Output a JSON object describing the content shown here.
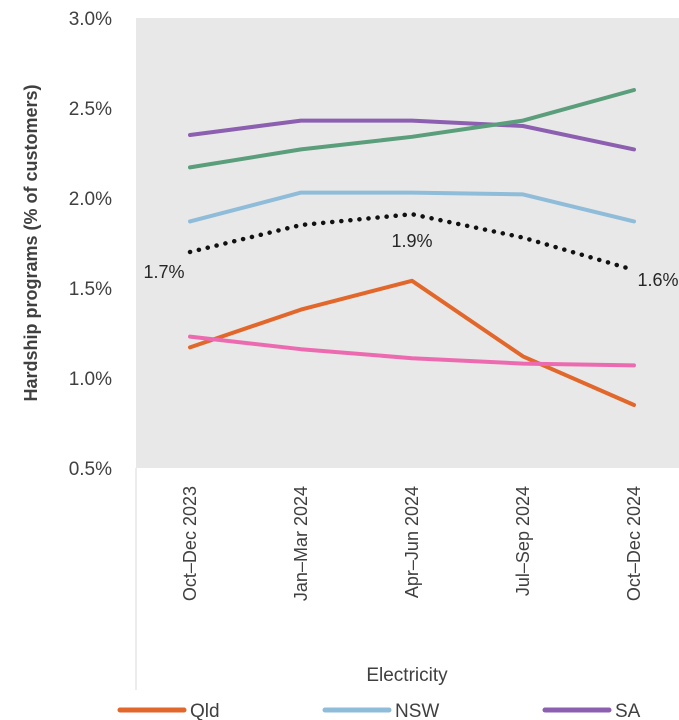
{
  "chart_data": {
    "type": "line",
    "ylabel": "Hardship programs (% of customers)",
    "xgroup_label": "Electricity",
    "ylim": [
      0.005,
      0.03
    ],
    "yticks": [
      0.005,
      0.01,
      0.015,
      0.02,
      0.025,
      0.03
    ],
    "ytick_labels": [
      "0.5%",
      "1.0%",
      "1.5%",
      "2.0%",
      "2.5%",
      "3.0%"
    ],
    "categories": [
      "Oct–Dec 2023",
      "Jan–Mar 2024",
      "Apr–Jun 2024",
      "Jul–Sep 2024",
      "Oct–Dec 2024"
    ],
    "grid": false,
    "plot_background": "#e8e8e8",
    "series": [
      {
        "name": "Qld",
        "color": "#e2672b",
        "style": "solid",
        "values": [
          0.0117,
          0.0138,
          0.0154,
          0.0112,
          0.0085
        ]
      },
      {
        "name": "NSW",
        "color": "#8fbcd9",
        "style": "solid",
        "values": [
          0.0187,
          0.0203,
          0.0203,
          0.0202,
          0.0187
        ]
      },
      {
        "name": "SA",
        "color": "#8c5fb0",
        "style": "solid",
        "values": [
          0.0235,
          0.0243,
          0.0243,
          0.024,
          0.0227
        ]
      },
      {
        "color": "#5a9e7b",
        "style": "solid",
        "values": [
          0.0217,
          0.0227,
          0.0234,
          0.0243,
          0.026
        ]
      },
      {
        "color": "#ec6bb0",
        "style": "solid",
        "values": [
          0.0123,
          0.0116,
          0.0111,
          0.0108,
          0.0107
        ]
      },
      {
        "color": "#111111",
        "style": "dotted",
        "values": [
          0.017,
          0.0185,
          0.0191,
          0.0178,
          0.016
        ]
      }
    ],
    "annotations": [
      {
        "series_index": 5,
        "point_index": 0,
        "text": "1.7%"
      },
      {
        "series_index": 5,
        "point_index": 2,
        "text": "1.9%"
      },
      {
        "series_index": 5,
        "point_index": 4,
        "text": "1.6%"
      }
    ],
    "legend": {
      "position": "bottom",
      "entries": [
        {
          "label": "Qld",
          "color": "#e2672b"
        },
        {
          "label": "NSW",
          "color": "#8fbcd9"
        },
        {
          "label": "SA",
          "color": "#8c5fb0"
        }
      ]
    }
  }
}
